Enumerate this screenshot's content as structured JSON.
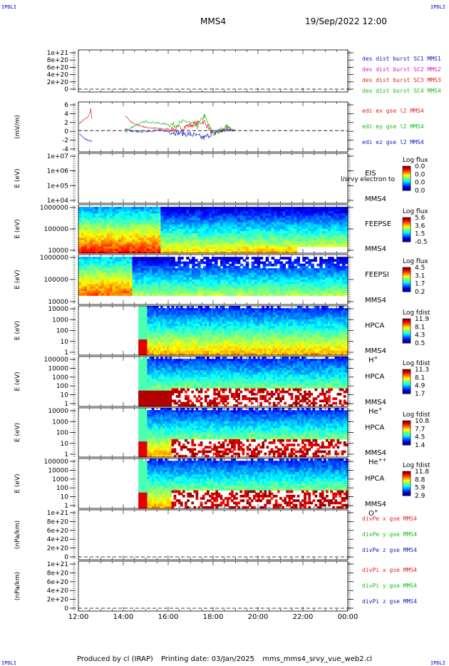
{
  "header": {
    "corner_label": "IPDLI",
    "title": "MMS4",
    "datetime": "19/Sep/2022 12:00"
  },
  "footer": {
    "produced_by": "Produced by cl (IRAP)",
    "printing_date": "Printing date: 03/Jan/2025",
    "filename": "mms_mms4_srvy_vue_web2.cl"
  },
  "colors": {
    "red": "#e02020",
    "green": "#10c010",
    "blue": "#1020c0",
    "magenta": "#d020d0",
    "cyan": "#10b8c8"
  },
  "chart_data": [
    {
      "type": "line",
      "time_range": [
        "12:00",
        "00:00"
      ],
      "xticks": [
        "12:00",
        "14:00",
        "16:00",
        "18:00",
        "20:00",
        "22:00",
        "00:00"
      ],
      "yticks": [
        "1e+21",
        "8e+20",
        "6e+20",
        "4e+20",
        "2e+20",
        "0"
      ],
      "ylim": [
        0,
        1e+21
      ],
      "ylabel": "",
      "zero_line": true,
      "series": [
        {
          "name": "des dist burst SC1 MMS1",
          "color": "#1020c0",
          "x": [],
          "y": []
        },
        {
          "name": "des dist burst SC2 MMS2",
          "color": "#d020d0",
          "x": [],
          "y": []
        },
        {
          "name": "des dist burst SC3 MMS3",
          "color": "#e02020",
          "x": [],
          "y": []
        },
        {
          "name": "des dist burst SC4 MMS4",
          "color": "#10c010",
          "x": [],
          "y": []
        }
      ]
    },
    {
      "type": "line",
      "time_range": [
        "12:00",
        "00:00"
      ],
      "yticks": [
        "6",
        "4",
        "2",
        "0",
        "-2",
        "-4"
      ],
      "ylim": [
        -5,
        7
      ],
      "ylabel": "(mV/m)",
      "zero_line": true,
      "series": [
        {
          "name": "edi ex gse l2 MMS4",
          "color": "#e02020",
          "x": [
            12.05,
            12.2,
            12.4,
            12.5,
            12.55,
            12.6,
            14.1,
            14.3,
            14.6,
            15.0,
            15.6,
            16.3,
            17.0,
            17.6,
            18.0,
            18.6,
            19.0
          ],
          "y": [
            2.0,
            2.8,
            3.5,
            4.5,
            6.0,
            3.0,
            4.0,
            2.5,
            1.6,
            0.9,
            0.5,
            0.3,
            1.5,
            2.5,
            -1.0,
            0.5,
            0.0
          ]
        },
        {
          "name": "edi ey gse l2 MMS4",
          "color": "#10c010",
          "x": [
            14.1,
            14.4,
            15.0,
            15.6,
            16.3,
            16.8,
            17.3,
            17.6,
            18.0,
            18.6,
            19.0
          ],
          "y": [
            -0.5,
            1.0,
            2.5,
            2.0,
            1.5,
            2.5,
            1.0,
            4.0,
            -1.0,
            1.0,
            0.0
          ]
        },
        {
          "name": "edi ez gse l2 MMS4",
          "color": "#1020c0",
          "x": [
            12.05,
            12.2,
            12.4,
            12.6,
            14.1,
            14.4,
            15.0,
            15.6,
            16.3,
            17.0,
            17.6,
            18.0,
            18.6,
            19.0
          ],
          "y": [
            -1.0,
            -1.8,
            -2.5,
            -3.0,
            0.5,
            -0.3,
            -0.2,
            0.1,
            -0.5,
            -1.0,
            -2.0,
            -0.5,
            0.2,
            0.0
          ]
        }
      ]
    },
    {
      "type": "heatmap",
      "ylabel": "E (eV)",
      "yticks": [
        "1e+07",
        "1e+06",
        "1e+05",
        "1e+04"
      ],
      "ylim": [
        10000.0,
        10000000.0
      ],
      "log_y": true,
      "instrument": [
        "EIS",
        "MMS4"
      ],
      "overlay_label": "l/srvy electron to",
      "colorbar": {
        "title": "Log flux",
        "ticks": [
          "0.0",
          "0.0",
          "0.0",
          "0.0"
        ]
      },
      "data_coverage": "none"
    },
    {
      "type": "heatmap",
      "ylabel": "E (eV)",
      "yticks": [
        "1000000",
        "100000",
        "10000"
      ],
      "ylim": [
        10000.0,
        1000000.0
      ],
      "log_y": true,
      "instrument": [
        "FEEPSE",
        "MMS4"
      ],
      "colorbar": {
        "title": "Log flux",
        "ticks": [
          "5.6",
          "3.6",
          "1.5",
          "-0.5"
        ]
      },
      "data_coverage": "12:00-00:00"
    },
    {
      "type": "heatmap",
      "ylabel": "E (eV)",
      "yticks": [
        "1000000",
        "100000",
        "10000"
      ],
      "ylim": [
        10000.0,
        1000000.0
      ],
      "log_y": true,
      "instrument": [
        "FEEPSI",
        "MMS4"
      ],
      "colorbar": {
        "title": "Log flux",
        "ticks": [
          "4.5",
          "3.1",
          "1.7",
          "0.2"
        ]
      },
      "data_coverage": "12:00-00:00"
    },
    {
      "type": "heatmap",
      "ylabel": "E (eV)",
      "yticks": [
        "10000",
        "1000",
        "100",
        "10",
        "1"
      ],
      "ylim": [
        1,
        40000.0
      ],
      "log_y": true,
      "instrument": [
        "HPCA",
        "MMS4"
      ],
      "species": "H",
      "species_sup": "+",
      "colorbar": {
        "title": "Log fdist",
        "ticks": [
          "11.9",
          "8.1",
          "4.3",
          "0.5"
        ]
      },
      "data_coverage": "14:40-00:00"
    },
    {
      "type": "heatmap",
      "ylabel": "E (eV)",
      "yticks": [
        "100000",
        "10000",
        "1000",
        "100",
        "10",
        "1"
      ],
      "ylim": [
        1,
        100000.0
      ],
      "log_y": true,
      "instrument": [
        "HPCA",
        "MMS4"
      ],
      "species": "He",
      "species_sup": "+",
      "colorbar": {
        "title": "Log fdist",
        "ticks": [
          "11.3",
          "8.1",
          "4.9",
          "1.7"
        ]
      },
      "data_coverage": "14:40-00:00"
    },
    {
      "type": "heatmap",
      "ylabel": "E (eV)",
      "yticks": [
        "10000",
        "1000",
        "100",
        "10",
        "1"
      ],
      "ylim": [
        1,
        40000.0
      ],
      "log_y": true,
      "instrument": [
        "HPCA",
        "MMS4"
      ],
      "species": "He",
      "species_sup": "++",
      "colorbar": {
        "title": "Log fdist",
        "ticks": [
          "10.8",
          "7.7",
          "4.5",
          "1.4"
        ]
      },
      "data_coverage": "14:40-00:00"
    },
    {
      "type": "heatmap",
      "ylabel": "E (eV)",
      "yticks": [
        "100000",
        "10000",
        "1000",
        "100",
        "10",
        "1"
      ],
      "ylim": [
        1,
        100000.0
      ],
      "log_y": true,
      "instrument": [
        "HPCA",
        "MMS4"
      ],
      "species": "O",
      "species_sup": "+",
      "colorbar": {
        "title": "Log fdist",
        "ticks": [
          "11.8",
          "8.8",
          "5.9",
          "2.9"
        ]
      },
      "data_coverage": "14:40-00:00"
    },
    {
      "type": "line",
      "yticks": [
        "1e+21",
        "8e+20",
        "6e+20",
        "4e+20",
        "2e+20",
        "0"
      ],
      "ylim": [
        0,
        1e+21
      ],
      "ylabel": "(nPa/km)",
      "zero_line": true,
      "series": [
        {
          "name": "divPe x gse MMS4",
          "color": "#e02020",
          "x": [],
          "y": []
        },
        {
          "name": "divPe y gse MMS4",
          "color": "#10c010",
          "x": [],
          "y": []
        },
        {
          "name": "divPe z gse MMS4",
          "color": "#1020c0",
          "x": [],
          "y": []
        }
      ]
    },
    {
      "type": "line",
      "yticks": [
        "1e+21",
        "8e+20",
        "6e+20",
        "4e+20",
        "2e+20",
        "0"
      ],
      "ylim": [
        0,
        1e+21
      ],
      "ylabel": "(nPa/km)",
      "zero_line": true,
      "series": [
        {
          "name": "divPi x gse MMS4",
          "color": "#e02020",
          "x": [],
          "y": []
        },
        {
          "name": "divPi y gse MMS4",
          "color": "#10c010",
          "x": [],
          "y": []
        },
        {
          "name": "divPi z gse MMS4",
          "color": "#1020c0",
          "x": [],
          "y": []
        }
      ]
    }
  ]
}
